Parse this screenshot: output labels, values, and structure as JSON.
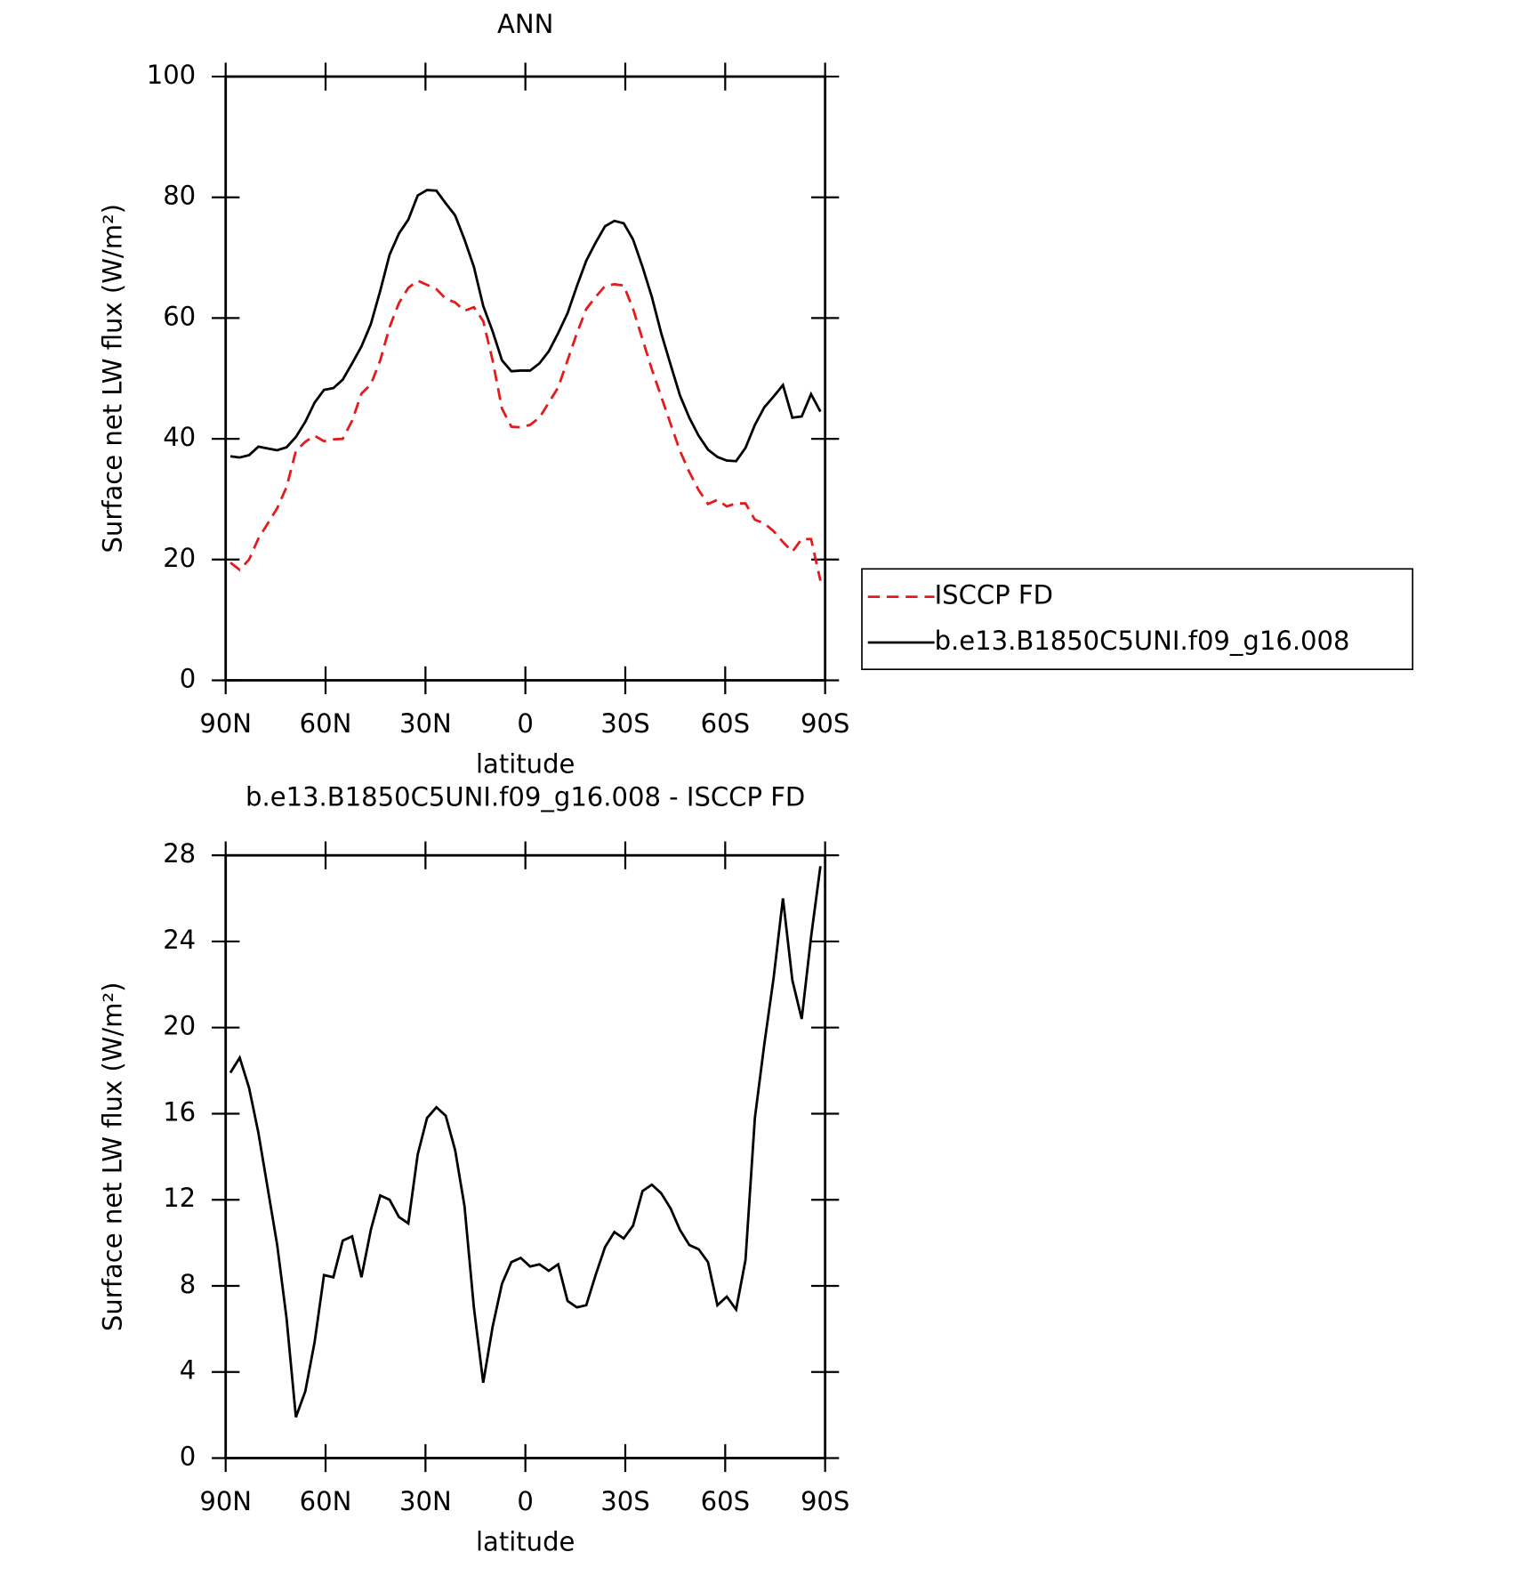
{
  "chart_data": [
    {
      "type": "line",
      "title": "ANN",
      "x_label": "latitude",
      "y_label": "Surface net LW flux (W/m²)",
      "x": [
        88.59,
        85.78,
        82.97,
        80.16,
        77.34,
        74.53,
        71.72,
        68.91,
        66.09,
        63.28,
        60.47,
        57.66,
        54.84,
        52.03,
        49.22,
        46.41,
        43.59,
        40.78,
        37.97,
        35.16,
        32.34,
        29.53,
        26.72,
        23.91,
        21.09,
        18.28,
        15.47,
        12.66,
        9.84,
        7.03,
        4.22,
        1.41,
        -1.41,
        -4.22,
        -7.03,
        -9.84,
        -12.66,
        -15.47,
        -18.28,
        -21.09,
        -23.91,
        -26.72,
        -29.53,
        -32.34,
        -35.16,
        -37.97,
        -40.78,
        -43.59,
        -46.41,
        -49.22,
        -52.03,
        -54.84,
        -57.66,
        -60.47,
        -63.28,
        -66.09,
        -68.91,
        -71.72,
        -74.53,
        -77.34,
        -80.16,
        -82.97,
        -85.78,
        -88.59
      ],
      "xlim": [
        90,
        -90
      ],
      "xticks": [
        {
          "value": 90,
          "label": "90N"
        },
        {
          "value": 60,
          "label": "60N"
        },
        {
          "value": 30,
          "label": "30N"
        },
        0,
        {
          "value": -30,
          "label": "30S"
        },
        {
          "value": -60,
          "label": "60S"
        },
        {
          "value": -90,
          "label": "90S"
        }
      ],
      "ylim": [
        0,
        100
      ],
      "yticks": [
        0,
        20,
        40,
        60,
        80,
        100
      ],
      "legend": "right",
      "series": [
        {
          "name": "ISCCP FD",
          "color": "#e41a1c",
          "style": "dashed",
          "values": [
            19.5,
            18.3,
            20,
            23.5,
            26,
            28.5,
            32,
            38,
            39.5,
            40.5,
            39.6,
            39.9,
            40,
            43,
            47.5,
            49,
            53,
            58.5,
            62.5,
            65,
            66.2,
            65.5,
            64.8,
            63.2,
            62.6,
            61.2,
            61.8,
            59.5,
            53,
            45,
            42,
            41.9,
            42.3,
            43.5,
            46,
            48.5,
            53,
            57.5,
            61.5,
            63.5,
            65.3,
            65.6,
            65.4,
            61.5,
            56.5,
            51.5,
            47,
            42.5,
            38,
            34.5,
            31.5,
            29.2,
            29.9,
            28.8,
            29.3,
            29.3,
            26.6,
            26,
            24.7,
            22.9,
            21.3,
            23.4,
            23.4,
            16.5
          ]
        },
        {
          "name": "b.e13.B1850C5UNI.f09_g16.008",
          "color": "#000000",
          "style": "solid",
          "values": [
            37.1,
            36.9,
            37.3,
            38.7,
            38.4,
            38.1,
            38.6,
            40.3,
            42.8,
            46,
            48.1,
            48.4,
            49.8,
            52.5,
            55.3,
            59,
            64.5,
            70.5,
            74,
            76.3,
            80.3,
            81.2,
            81.1,
            79,
            77,
            73,
            68.5,
            62,
            57.8,
            53,
            51.2,
            51.3,
            51.3,
            52.5,
            54.5,
            57.5,
            60.8,
            65.3,
            69.5,
            72.5,
            75.2,
            76.1,
            75.7,
            73,
            68.5,
            63.5,
            57.5,
            52.3,
            47.2,
            43.5,
            40.5,
            38.2,
            37,
            36.4,
            36.3,
            38.5,
            42.3,
            45.2,
            47,
            48.9,
            43.5,
            43.7,
            47.4,
            44.5
          ]
        }
      ]
    },
    {
      "type": "line",
      "title": "b.e13.B1850C5UNI.f09_g16.008 - ISCCP FD",
      "x_label": "latitude",
      "y_label": "Surface net LW flux (W/m²)",
      "x": [
        88.59,
        85.78,
        82.97,
        80.16,
        77.34,
        74.53,
        71.72,
        68.91,
        66.09,
        63.28,
        60.47,
        57.66,
        54.84,
        52.03,
        49.22,
        46.41,
        43.59,
        40.78,
        37.97,
        35.16,
        32.34,
        29.53,
        26.72,
        23.91,
        21.09,
        18.28,
        15.47,
        12.66,
        9.84,
        7.03,
        4.22,
        1.41,
        -1.41,
        -4.22,
        -7.03,
        -9.84,
        -12.66,
        -15.47,
        -18.28,
        -21.09,
        -23.91,
        -26.72,
        -29.53,
        -32.34,
        -35.16,
        -37.97,
        -40.78,
        -43.59,
        -46.41,
        -49.22,
        -52.03,
        -54.84,
        -57.66,
        -60.47,
        -63.28,
        -66.09,
        -68.91,
        -71.72,
        -74.53,
        -77.34,
        -80.16,
        -82.97,
        -85.78,
        -88.59
      ],
      "xlim": [
        90,
        -90
      ],
      "xticks": [
        {
          "value": 90,
          "label": "90N"
        },
        {
          "value": 60,
          "label": "60N"
        },
        {
          "value": 30,
          "label": "30N"
        },
        0,
        {
          "value": -30,
          "label": "30S"
        },
        {
          "value": -60,
          "label": "60S"
        },
        {
          "value": -90,
          "label": "90S"
        }
      ],
      "ylim": [
        0,
        28
      ],
      "yticks": [
        0,
        4,
        8,
        12,
        16,
        20,
        24,
        28
      ],
      "series": [
        {
          "color": "#000000",
          "style": "solid",
          "values": [
            17.9,
            18.6,
            17.2,
            15.1,
            12.5,
            9.9,
            6.5,
            1.9,
            3.1,
            5.4,
            8.5,
            8.4,
            10.1,
            10.3,
            8.4,
            10.6,
            12.2,
            12,
            11.2,
            10.9,
            14.1,
            15.8,
            16.3,
            15.9,
            14.3,
            11.7,
            7,
            3.5,
            6.1,
            8.1,
            9.1,
            9.3,
            8.9,
            9,
            8.7,
            9,
            7.3,
            7,
            7.1,
            8.5,
            9.8,
            10.5,
            10.2,
            10.8,
            12.4,
            12.7,
            12.3,
            11.6,
            10.6,
            9.9,
            9.7,
            9.1,
            7.1,
            7.5,
            6.9,
            9.2,
            15.8,
            19.2,
            22.3,
            26,
            22.2,
            20.4,
            24.2,
            27.5
          ]
        }
      ]
    }
  ]
}
